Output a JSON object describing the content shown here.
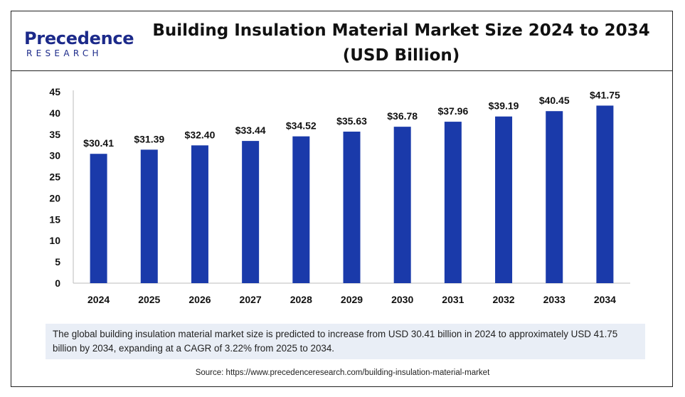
{
  "logo": {
    "wordmark": "Precedence",
    "subtitle": "RESEARCH"
  },
  "title_line1": "Building Insulation Material Market Size 2024 to 2034",
  "title_line2": "(USD Billion)",
  "chart_data": {
    "type": "bar",
    "title": "Building Insulation Material Market Size 2024 to 2034 (USD Billion)",
    "xlabel": "",
    "ylabel": "",
    "categories": [
      "2024",
      "2025",
      "2026",
      "2027",
      "2028",
      "2029",
      "2030",
      "2031",
      "2032",
      "2033",
      "2034"
    ],
    "values": [
      30.41,
      31.39,
      32.4,
      33.44,
      34.52,
      35.63,
      36.78,
      37.96,
      39.19,
      40.45,
      41.75
    ],
    "data_labels": [
      "$30.41",
      "$31.39",
      "$32.40",
      "$33.44",
      "$34.52",
      "$35.63",
      "$36.78",
      "$37.96",
      "$39.19",
      "$40.45",
      "$41.75"
    ],
    "yticks": [
      0,
      5,
      10,
      15,
      20,
      25,
      30,
      35,
      40,
      45
    ],
    "ylim": [
      0,
      45
    ],
    "grid": false,
    "bar_color": "#1a3aaa"
  },
  "note": "The global building insulation material market size is predicted to increase from USD 30.41 billion in 2024 to approximately USD 41.75 billion by 2034, expanding at a CAGR of 3.22% from 2025 to 2034.",
  "source": "Source: https://www.precedenceresearch.com/building-insulation-material-market"
}
